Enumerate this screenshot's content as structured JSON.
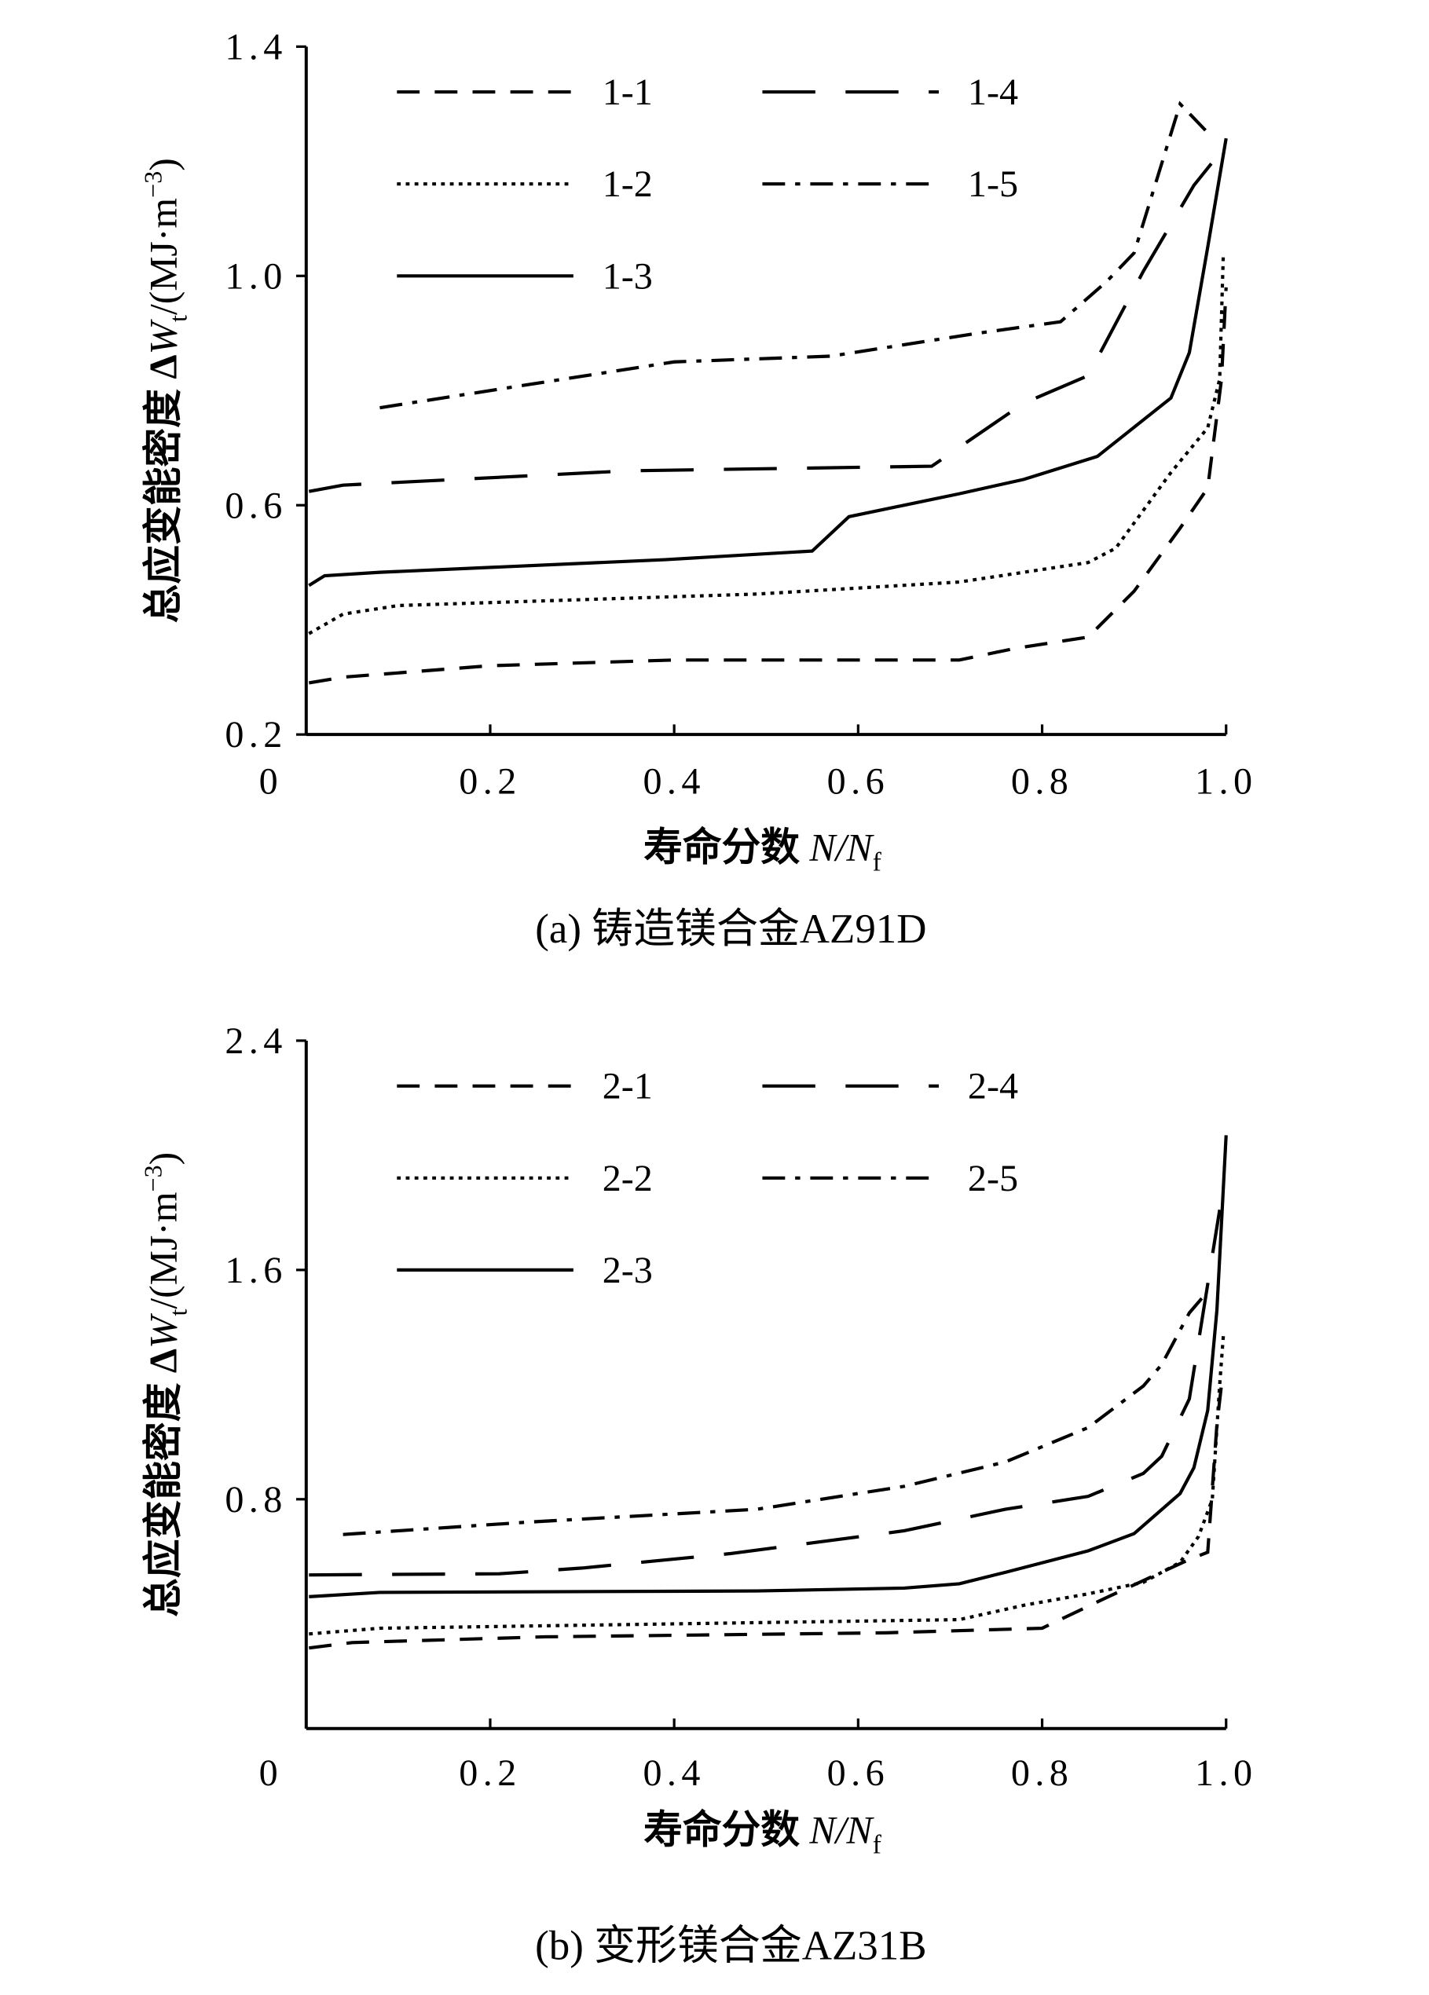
{
  "chart_data": [
    {
      "type": "line",
      "caption": "(a) 铸造镁合金AZ91D",
      "xlabel": {
        "text": "寿命分数 ",
        "var": "N/N",
        "sub": "f"
      },
      "ylabel": {
        "text": "总应变能密度 Δ",
        "var": "W",
        "sub": "t",
        "unit": "/(MJ·m",
        "sup": "−3",
        "close": ")"
      },
      "xlim": [
        0,
        1
      ],
      "xticks": [
        0,
        0.2,
        0.4,
        0.6,
        0.8,
        {
          "value": 1,
          "label": "1.0"
        }
      ],
      "ylim": [
        0.2,
        1.4
      ],
      "yticks": [
        0.2,
        0.6,
        {
          "value": 1,
          "label": "1.0"
        },
        1.4
      ],
      "series": [
        {
          "name": "1-1",
          "color": "#000000",
          "dash": "dashed",
          "x": [
            0.003,
            0.04,
            0.2,
            0.4,
            0.71,
            0.77,
            0.85,
            0.9,
            0.95,
            0.98,
            0.995,
            1.0
          ],
          "values": [
            0.29,
            0.3,
            0.32,
            0.33,
            0.33,
            0.35,
            0.37,
            0.45,
            0.56,
            0.63,
            0.82,
            0.98
          ]
        },
        {
          "name": "1-2",
          "color": "#000000",
          "dash": "dotted",
          "x": [
            0.003,
            0.04,
            0.1,
            0.49,
            0.71,
            0.85,
            0.88,
            0.94,
            0.98,
            0.993,
            0.997
          ],
          "values": [
            0.376,
            0.41,
            0.425,
            0.445,
            0.466,
            0.5,
            0.525,
            0.657,
            0.735,
            0.82,
            1.04
          ]
        },
        {
          "name": "1-3",
          "color": "#000000",
          "dash": "solid",
          "x": [
            0.003,
            0.02,
            0.08,
            0.39,
            0.55,
            0.59,
            0.71,
            0.78,
            0.86,
            0.94,
            0.96,
            0.98,
            1.0
          ],
          "values": [
            0.46,
            0.477,
            0.483,
            0.505,
            0.52,
            0.58,
            0.62,
            0.645,
            0.685,
            0.787,
            0.866,
            1.05,
            1.24
          ]
        },
        {
          "name": "1-4",
          "color": "#000000",
          "dash": "long-dashed",
          "x": [
            0.003,
            0.04,
            0.35,
            0.68,
            0.78,
            0.85,
            0.91,
            0.965,
            0.995
          ],
          "values": [
            0.624,
            0.635,
            0.66,
            0.668,
            0.778,
            0.826,
            1.008,
            1.158,
            1.218
          ]
        },
        {
          "name": "1-5",
          "color": "#000000",
          "dash": "dash-dot",
          "x": [
            0.08,
            0.4,
            0.57,
            0.73,
            0.82,
            0.87,
            0.9,
            0.95,
            0.98
          ],
          "values": [
            0.77,
            0.85,
            0.86,
            0.9,
            0.92,
            0.99,
            1.04,
            1.3,
            1.25
          ]
        }
      ]
    },
    {
      "type": "line",
      "caption": "(b) 变形镁合金AZ31B",
      "xlabel": {
        "text": "寿命分数 ",
        "var": "N/N",
        "sub": "f"
      },
      "ylabel": {
        "text": "总应变能密度 Δ",
        "var": "W",
        "sub": "t",
        "unit": "/(MJ·m",
        "sup": "−3",
        "close": ")"
      },
      "xlim": [
        0,
        1
      ],
      "xticks": [
        0,
        0.2,
        0.4,
        0.6,
        0.8,
        {
          "value": 1,
          "label": "1.0"
        }
      ],
      "ylim": [
        0,
        2.4
      ],
      "yticks": [
        0.8,
        1.6,
        2.4
      ],
      "series": [
        {
          "name": "2-1",
          "color": "#000000",
          "dash": "dashed",
          "x": [
            0.003,
            0.05,
            0.26,
            0.63,
            0.8,
            0.87,
            0.96,
            0.98,
            0.99,
            0.995
          ],
          "values": [
            0.281,
            0.3,
            0.32,
            0.334,
            0.35,
            0.457,
            0.59,
            0.615,
            1.06,
            1.2
          ]
        },
        {
          "name": "2-2",
          "color": "#000000",
          "dash": "dotted",
          "x": [
            0.003,
            0.08,
            0.71,
            0.78,
            0.85,
            0.91,
            0.95,
            0.97,
            0.985,
            0.993,
            0.997
          ],
          "values": [
            0.33,
            0.35,
            0.38,
            0.43,
            0.47,
            0.51,
            0.58,
            0.67,
            0.8,
            1.2,
            1.37
          ]
        },
        {
          "name": "2-3",
          "color": "#000000",
          "dash": "solid",
          "x": [
            0.003,
            0.08,
            0.49,
            0.65,
            0.71,
            0.76,
            0.85,
            0.9,
            0.95,
            0.965,
            0.98,
            0.99,
            1.0
          ],
          "values": [
            0.46,
            0.475,
            0.48,
            0.49,
            0.505,
            0.545,
            0.62,
            0.68,
            0.82,
            0.91,
            1.11,
            1.46,
            2.07
          ]
        },
        {
          "name": "2-4",
          "color": "#000000",
          "dash": "long-dashed",
          "x": [
            0.003,
            0.21,
            0.3,
            0.46,
            0.65,
            0.76,
            0.85,
            0.91,
            0.93,
            0.96,
            0.993
          ],
          "values": [
            0.536,
            0.54,
            0.56,
            0.61,
            0.69,
            0.765,
            0.81,
            0.89,
            0.95,
            1.15,
            1.81
          ]
        },
        {
          "name": "2-5",
          "color": "#000000",
          "dash": "dash-dot",
          "x": [
            0.04,
            0.24,
            0.49,
            0.65,
            0.76,
            0.85,
            0.91,
            0.93,
            0.96,
            0.98
          ],
          "values": [
            0.677,
            0.72,
            0.765,
            0.845,
            0.93,
            1.05,
            1.195,
            1.27,
            1.45,
            1.525
          ]
        }
      ]
    }
  ]
}
